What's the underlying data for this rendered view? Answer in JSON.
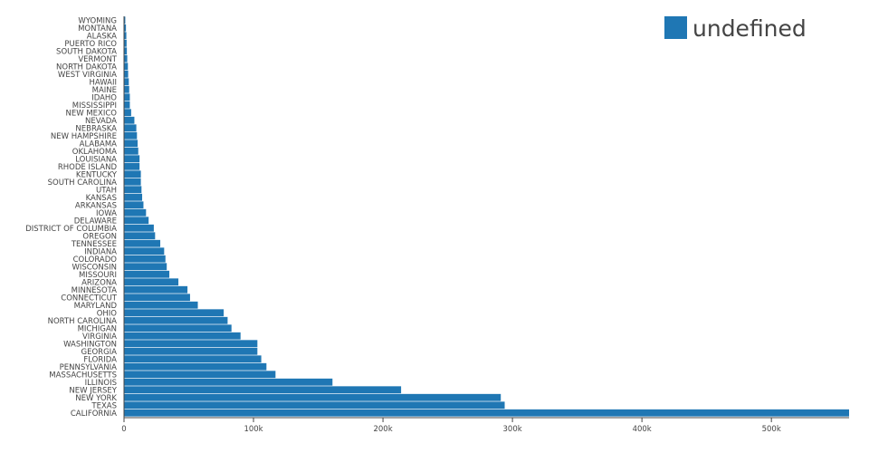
{
  "chart_data": {
    "type": "bar",
    "orientation": "horizontal",
    "title": "",
    "xlabel": "",
    "ylabel": "",
    "xlim": [
      0,
      560000
    ],
    "grid": false,
    "legend_position": "top-right",
    "colors": {
      "bar": "#1f77b4",
      "axis": "#444444",
      "label": "#444444"
    },
    "x_ticks": [
      {
        "value": 0,
        "label": "0"
      },
      {
        "value": 100000,
        "label": "100k"
      },
      {
        "value": 200000,
        "label": "200k"
      },
      {
        "value": 300000,
        "label": "300k"
      },
      {
        "value": 400000,
        "label": "400k"
      },
      {
        "value": 500000,
        "label": "500k"
      }
    ],
    "series": [
      {
        "name": "undefined",
        "categories": [
          "CALIFORNIA",
          "TEXAS",
          "NEW YORK",
          "NEW JERSEY",
          "ILLINOIS",
          "MASSACHUSETTS",
          "PENNSYLVANIA",
          "FLORIDA",
          "GEORGIA",
          "WASHINGTON",
          "VIRGINIA",
          "MICHIGAN",
          "NORTH CAROLINA",
          "OHIO",
          "MARYLAND",
          "CONNECTICUT",
          "MINNESOTA",
          "ARIZONA",
          "MISSOURI",
          "WISCONSIN",
          "COLORADO",
          "INDIANA",
          "TENNESSEE",
          "OREGON",
          "DISTRICT OF COLUMBIA",
          "DELAWARE",
          "IOWA",
          "ARKANSAS",
          "KANSAS",
          "UTAH",
          "SOUTH CAROLINA",
          "KENTUCKY",
          "RHODE ISLAND",
          "LOUISIANA",
          "OKLAHOMA",
          "ALABAMA",
          "NEW HAMPSHIRE",
          "NEBRASKA",
          "NEVADA",
          "NEW MEXICO",
          "MISSISSIPPI",
          "IDAHO",
          "MAINE",
          "HAWAII",
          "WEST VIRGINIA",
          "NORTH DAKOTA",
          "VERMONT",
          "SOUTH DAKOTA",
          "PUERTO RICO",
          "ALASKA",
          "MONTANA",
          "WYOMING"
        ],
        "values": [
          560000,
          294000,
          291000,
          214000,
          161000,
          117000,
          110000,
          106000,
          103000,
          103000,
          90000,
          83000,
          80000,
          77000,
          57000,
          51000,
          49000,
          42000,
          35000,
          33000,
          32000,
          31000,
          28000,
          24000,
          23000,
          19000,
          17000,
          15000,
          14000,
          13500,
          13000,
          13000,
          12000,
          12000,
          11000,
          10500,
          10000,
          9500,
          8000,
          5500,
          4500,
          4500,
          4000,
          3700,
          3200,
          3000,
          2500,
          2200,
          2000,
          1800,
          1500,
          1000
        ]
      }
    ]
  }
}
